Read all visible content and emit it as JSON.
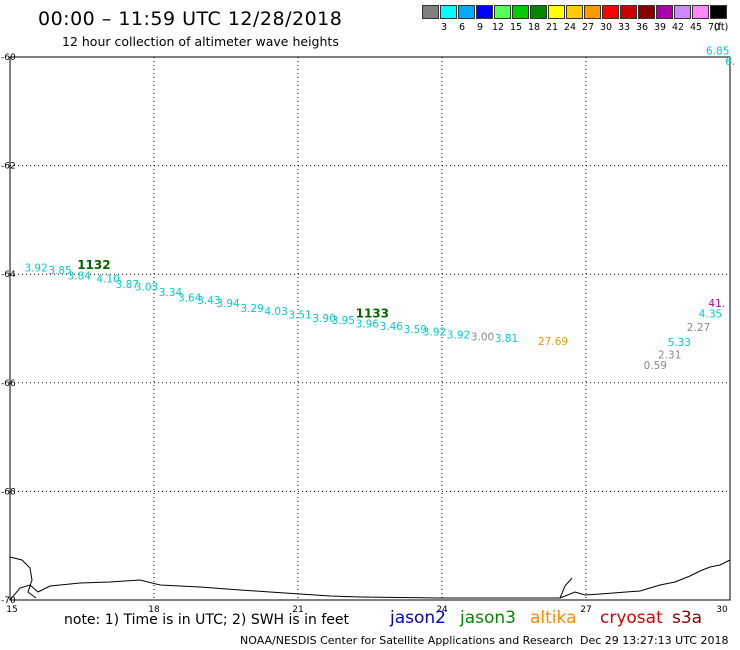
{
  "header": {
    "title": "00:00 – 11:59 UTC 12/28/2018",
    "subtitle": "12 hour collection of altimeter wave heights"
  },
  "legend": {
    "unit": "(ft)",
    "items": [
      {
        "label": "3",
        "color": "#808080"
      },
      {
        "label": "6",
        "color": "#00ffff"
      },
      {
        "label": "9",
        "color": "#00aaff"
      },
      {
        "label": "12",
        "color": "#0000ff"
      },
      {
        "label": "15",
        "color": "#55ff55"
      },
      {
        "label": "18",
        "color": "#00cc00"
      },
      {
        "label": "21",
        "color": "#008800"
      },
      {
        "label": "24",
        "color": "#ffff00"
      },
      {
        "label": "27",
        "color": "#ffcc00"
      },
      {
        "label": "30",
        "color": "#ff9900"
      },
      {
        "label": "33",
        "color": "#ff0000"
      },
      {
        "label": "36",
        "color": "#cc0000"
      },
      {
        "label": "39",
        "color": "#880000"
      },
      {
        "label": "42",
        "color": "#aa00aa"
      },
      {
        "label": "45",
        "color": "#cc88ff"
      },
      {
        "label": "70",
        "color": "#ff88ff"
      },
      {
        "label": "",
        "color": "#000000"
      }
    ]
  },
  "map": {
    "lon_ticks": [
      "15",
      "18",
      "21",
      "24",
      "27",
      "30"
    ],
    "lat_ticks": [
      "-60",
      "-62",
      "-64",
      "-66",
      "-68",
      "-70"
    ],
    "lon_range": [
      15,
      30
    ],
    "lat_range": [
      -70,
      -60
    ],
    "track_labels": [
      {
        "text": "1132",
        "lon": 16.4,
        "lat": -63.9,
        "color": "#006600"
      },
      {
        "text": "1133",
        "lon": 22.2,
        "lat": -64.8,
        "color": "#006600"
      }
    ],
    "points": [
      {
        "text": "3.92",
        "lon": 15.3,
        "lat": -63.95,
        "color": "#00cccc"
      },
      {
        "text": "3.85",
        "lon": 15.8,
        "lat": -64.0,
        "color": "#00cccc"
      },
      {
        "text": "3.84",
        "lon": 16.2,
        "lat": -64.1,
        "color": "#00cccc"
      },
      {
        "text": "4.10",
        "lon": 16.8,
        "lat": -64.15,
        "color": "#00cccc"
      },
      {
        "text": "3.87",
        "lon": 17.2,
        "lat": -64.25,
        "color": "#00cccc"
      },
      {
        "text": "3.03",
        "lon": 17.6,
        "lat": -64.3,
        "color": "#00cccc"
      },
      {
        "text": "3.34",
        "lon": 18.1,
        "lat": -64.4,
        "color": "#00cccc"
      },
      {
        "text": "3.64",
        "lon": 18.5,
        "lat": -64.5,
        "color": "#00cccc"
      },
      {
        "text": "3.43",
        "lon": 18.9,
        "lat": -64.55,
        "color": "#00cccc"
      },
      {
        "text": "3.94",
        "lon": 19.3,
        "lat": -64.6,
        "color": "#00cccc"
      },
      {
        "text": "3.29",
        "lon": 19.8,
        "lat": -64.7,
        "color": "#00cccc"
      },
      {
        "text": "4.03",
        "lon": 20.3,
        "lat": -64.75,
        "color": "#00cccc"
      },
      {
        "text": "3.51",
        "lon": 20.8,
        "lat": -64.82,
        "color": "#00cccc"
      },
      {
        "text": "3.90",
        "lon": 21.3,
        "lat": -64.88,
        "color": "#00cccc"
      },
      {
        "text": "3.95",
        "lon": 21.7,
        "lat": -64.92,
        "color": "#00cccc"
      },
      {
        "text": "3.96",
        "lon": 22.2,
        "lat": -64.98,
        "color": "#00cccc"
      },
      {
        "text": "3.46",
        "lon": 22.7,
        "lat": -65.03,
        "color": "#00cccc"
      },
      {
        "text": "3.59",
        "lon": 23.2,
        "lat": -65.08,
        "color": "#00cccc"
      },
      {
        "text": "3.92",
        "lon": 23.6,
        "lat": -65.13,
        "color": "#00cccc"
      },
      {
        "text": "3.92",
        "lon": 24.1,
        "lat": -65.18,
        "color": "#00cccc"
      },
      {
        "text": "3.00",
        "lon": 24.6,
        "lat": -65.22,
        "color": "#888888"
      },
      {
        "text": "3.81",
        "lon": 25.1,
        "lat": -65.25,
        "color": "#00cccc"
      },
      {
        "text": "27.69",
        "lon": 26.0,
        "lat": -65.3,
        "color": "#ee9900"
      },
      {
        "text": "41.",
        "lon": 29.55,
        "lat": -64.6,
        "color": "#aa00aa"
      },
      {
        "text": "4.35",
        "lon": 29.35,
        "lat": -64.8,
        "color": "#00cccc"
      },
      {
        "text": "2.27",
        "lon": 29.1,
        "lat": -65.05,
        "color": "#888888"
      },
      {
        "text": "5.33",
        "lon": 28.7,
        "lat": -65.32,
        "color": "#00cccc"
      },
      {
        "text": "2.31",
        "lon": 28.5,
        "lat": -65.55,
        "color": "#888888"
      },
      {
        "text": "0.59",
        "lon": 28.2,
        "lat": -65.75,
        "color": "#888888"
      },
      {
        "text": "6.85",
        "lon": 29.5,
        "lat": -59.95,
        "color": "#00cccc"
      },
      {
        "text": "6.",
        "lon": 29.9,
        "lat": -60.15,
        "color": "#00cccc"
      }
    ]
  },
  "footer": {
    "note": "note: 1) Time is in UTC; 2) SWH is in feet",
    "satellites": [
      {
        "name": "jason2",
        "color": "#0000cc"
      },
      {
        "name": "jason3",
        "color": "#008800"
      },
      {
        "name": "altika",
        "color": "#ff8800"
      },
      {
        "name": "cryosat",
        "color": "#dd0000"
      },
      {
        "name": "s3a",
        "color": "#880000"
      }
    ],
    "credit": "NOAA/NESDIS Center for Satellite Applications and Research",
    "timestamp": "Dec 29 13:27:13 UTC 2018"
  }
}
